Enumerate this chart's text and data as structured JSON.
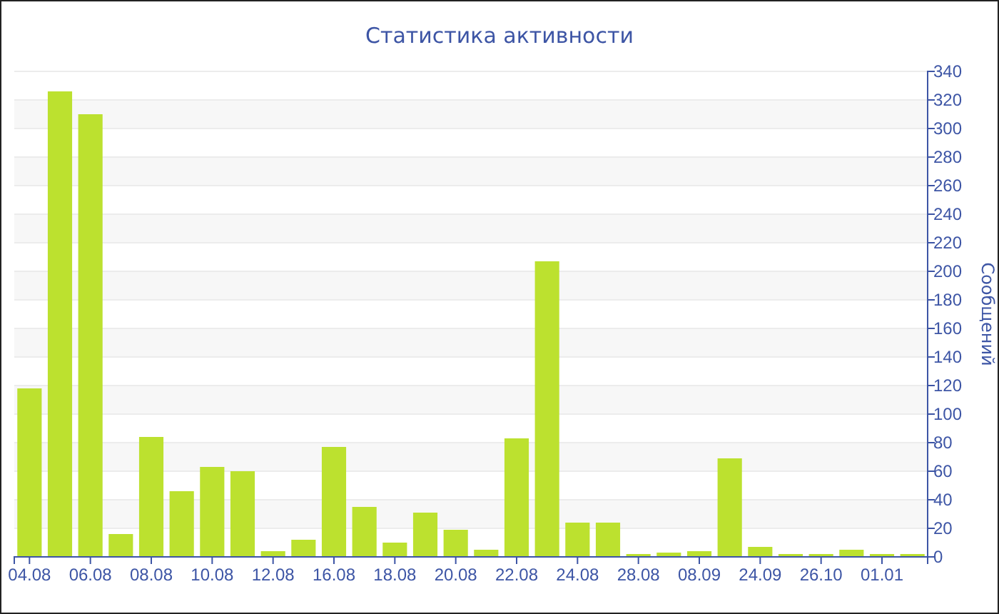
{
  "chart_data": {
    "type": "bar",
    "title": "Статистика активности",
    "ylabel": "Сообщений",
    "categories": [
      "04.08",
      null,
      "06.08",
      null,
      "08.08",
      null,
      "10.08",
      null,
      "12.08",
      null,
      "16.08",
      null,
      "18.08",
      null,
      "20.08",
      null,
      "22.08",
      null,
      "24.08",
      null,
      "28.08",
      null,
      "08.09",
      null,
      "24.09",
      null,
      "26.10",
      null,
      "01.01",
      null
    ],
    "values": [
      118,
      326,
      310,
      16,
      84,
      46,
      63,
      60,
      4,
      12,
      77,
      35,
      10,
      31,
      19,
      5,
      83,
      207,
      24,
      24,
      2,
      3,
      4,
      69,
      7,
      2,
      2,
      5,
      2,
      2
    ],
    "color": "#bce12f",
    "ylim": [
      0,
      340
    ],
    "yticks": [
      0,
      20,
      40,
      60,
      80,
      100,
      120,
      140,
      160,
      180,
      200,
      220,
      240,
      260,
      280,
      300,
      320,
      340
    ],
    "grid": "y"
  }
}
